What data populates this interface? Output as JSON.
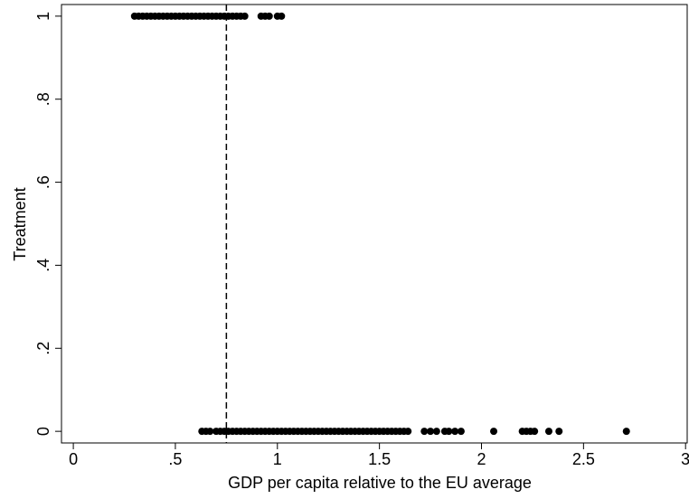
{
  "chart_data": {
    "type": "scatter",
    "x_label": "GDP per capita relative to the EU average",
    "y_label": "Treatment",
    "xlim": [
      -0.058,
      3.008
    ],
    "ylim": [
      -0.028,
      1.028
    ],
    "xticks": [
      0,
      {
        "value": 0.5,
        "label": ".5"
      },
      1,
      {
        "value": 1.5,
        "label": "1.5"
      },
      2,
      {
        "value": 2.5,
        "label": "2.5"
      },
      3
    ],
    "yticks": [
      0,
      {
        "value": 0.2,
        "label": ".2"
      },
      {
        "value": 0.4,
        "label": ".4"
      },
      {
        "value": 0.6,
        "label": ".6"
      },
      {
        "value": 0.8,
        "label": ".8"
      },
      1
    ],
    "vline": 0.75,
    "color": "#000000",
    "series": [
      {
        "x": [
          0.3,
          0.32,
          0.34,
          0.36,
          0.38,
          0.4,
          0.42,
          0.44,
          0.46,
          0.48,
          0.5,
          0.52,
          0.54,
          0.56,
          0.58,
          0.6,
          0.62,
          0.64,
          0.66,
          0.68,
          0.7,
          0.72,
          0.74,
          0.76,
          0.78,
          0.8,
          0.82,
          0.84,
          0.92,
          0.94,
          0.96,
          1.0,
          1.02
        ],
        "values": [
          1,
          1,
          1,
          1,
          1,
          1,
          1,
          1,
          1,
          1,
          1,
          1,
          1,
          1,
          1,
          1,
          1,
          1,
          1,
          1,
          1,
          1,
          1,
          1,
          1,
          1,
          1,
          1,
          1,
          1,
          1,
          1,
          1
        ]
      },
      {
        "x": [
          0.63,
          0.65,
          0.67,
          0.7,
          0.72,
          0.74,
          0.76,
          0.78,
          0.8,
          0.82,
          0.84,
          0.86,
          0.88,
          0.9,
          0.92,
          0.94,
          0.96,
          0.98,
          1.0,
          1.02,
          1.04,
          1.06,
          1.08,
          1.1,
          1.12,
          1.14,
          1.16,
          1.18,
          1.2,
          1.22,
          1.24,
          1.26,
          1.28,
          1.3,
          1.32,
          1.34,
          1.36,
          1.38,
          1.4,
          1.42,
          1.44,
          1.46,
          1.48,
          1.5,
          1.52,
          1.54,
          1.56,
          1.58,
          1.6,
          1.62,
          1.64,
          1.72,
          1.75,
          1.78,
          1.82,
          1.84,
          1.87,
          1.9,
          2.06,
          2.2,
          2.22,
          2.24,
          2.26,
          2.33,
          2.38,
          2.71
        ],
        "values": [
          0,
          0,
          0,
          0,
          0,
          0,
          0,
          0,
          0,
          0,
          0,
          0,
          0,
          0,
          0,
          0,
          0,
          0,
          0,
          0,
          0,
          0,
          0,
          0,
          0,
          0,
          0,
          0,
          0,
          0,
          0,
          0,
          0,
          0,
          0,
          0,
          0,
          0,
          0,
          0,
          0,
          0,
          0,
          0,
          0,
          0,
          0,
          0,
          0,
          0,
          0,
          0,
          0,
          0,
          0,
          0,
          0,
          0,
          0,
          0,
          0,
          0,
          0,
          0,
          0,
          0
        ]
      }
    ]
  }
}
